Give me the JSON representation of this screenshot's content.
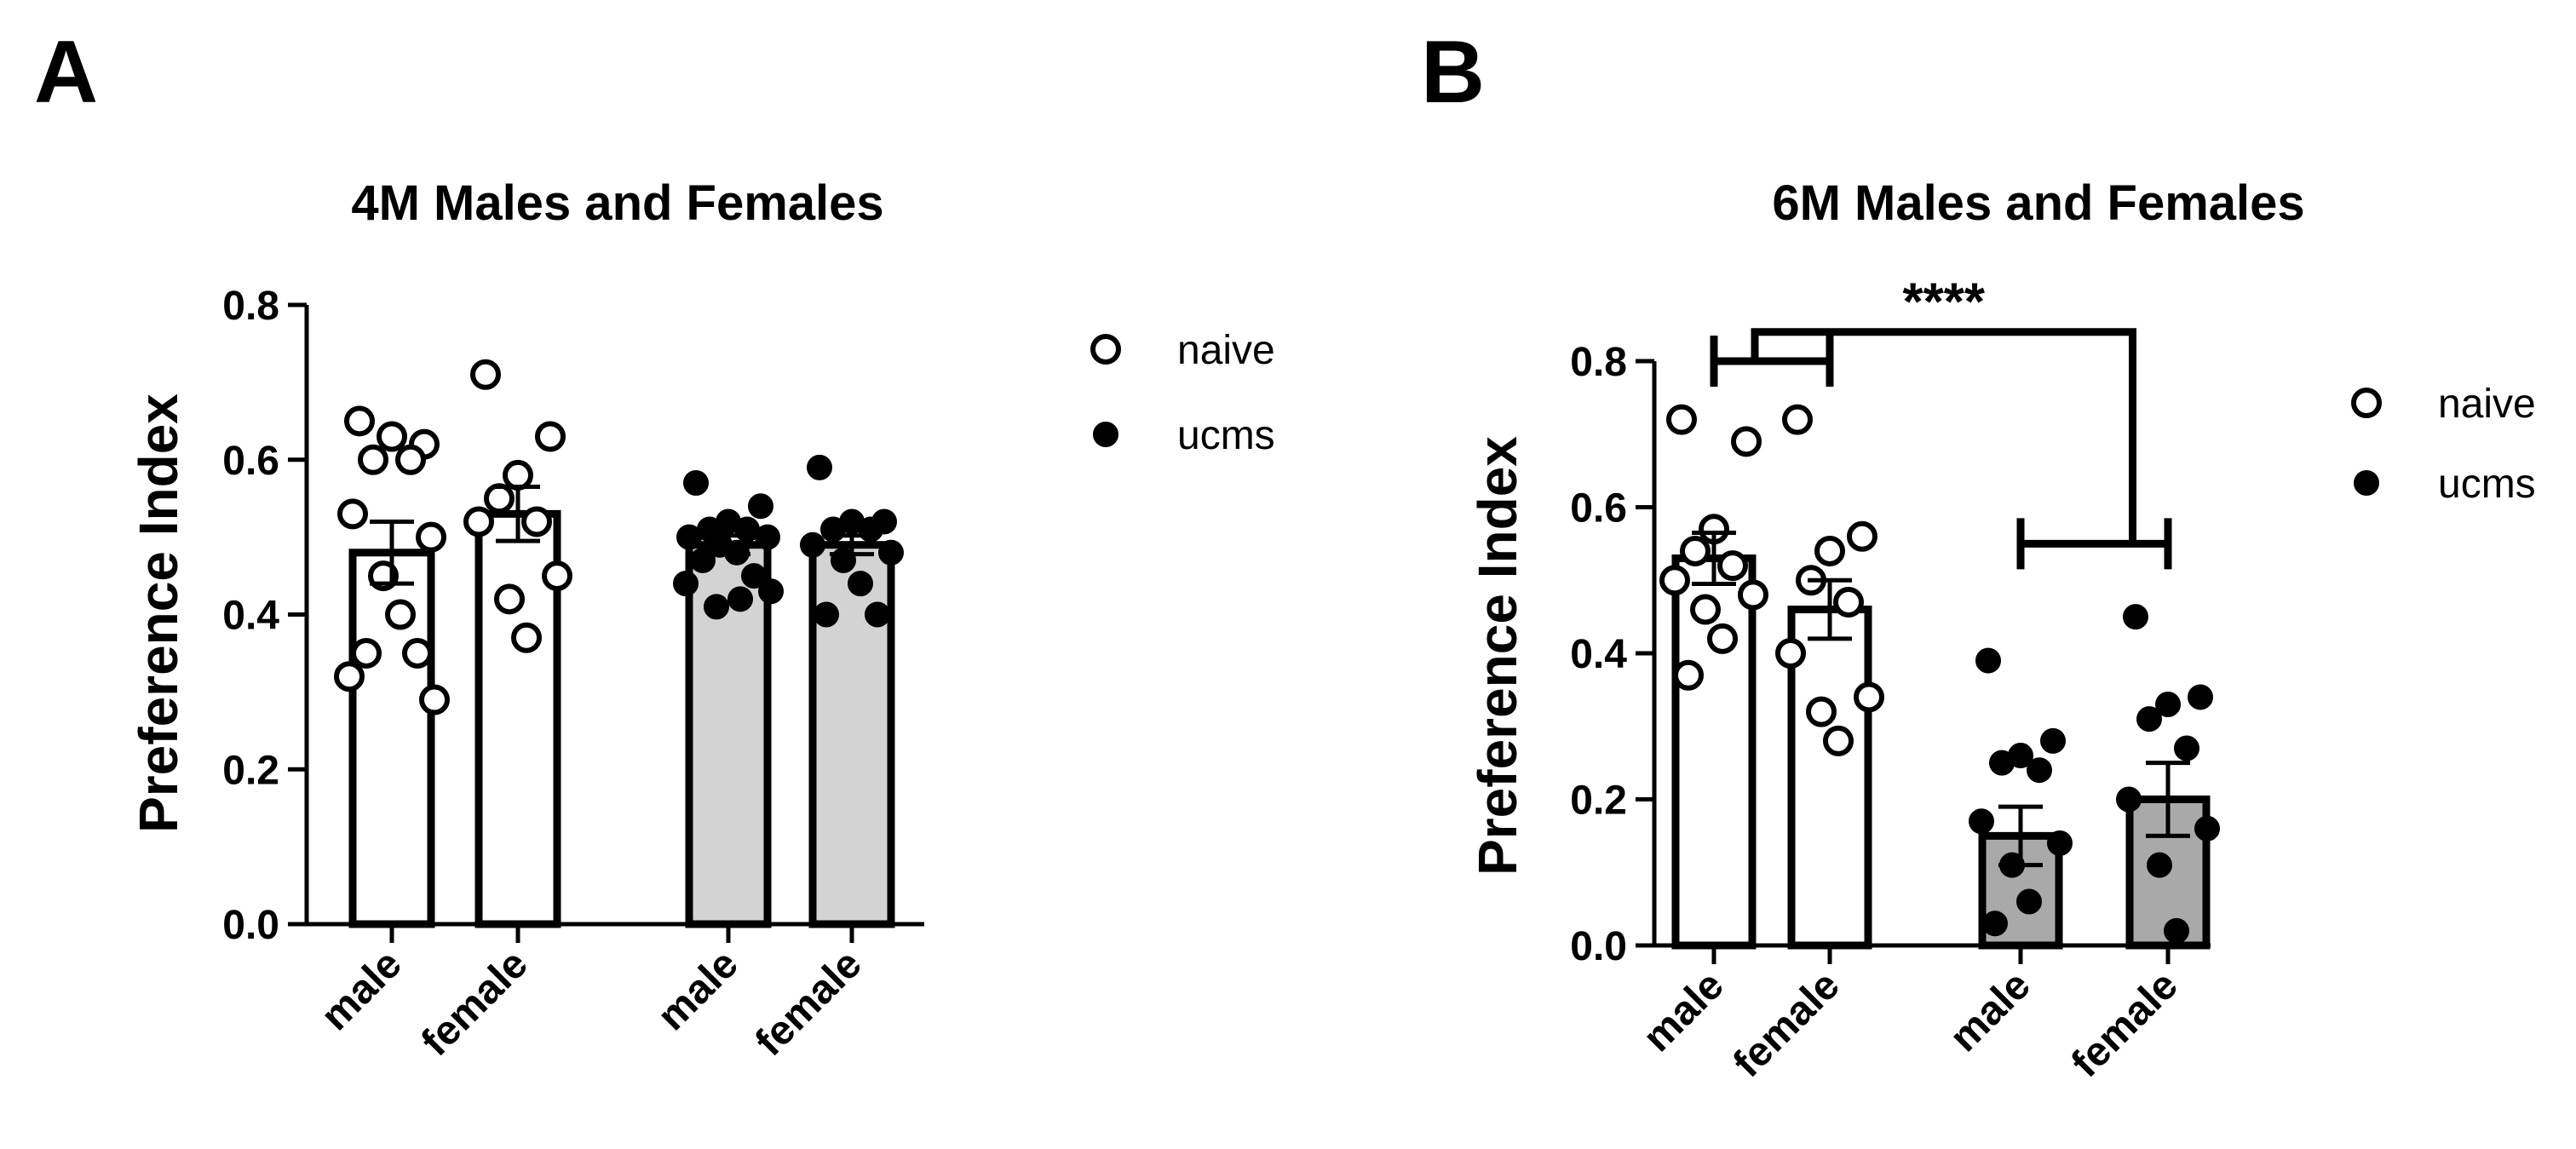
{
  "chart_data": [
    {
      "panel": "A",
      "type": "bar",
      "title": "4M Males and Females",
      "ylabel": "Preference Index",
      "xlabel": "",
      "ylim": [
        0,
        0.8
      ],
      "yticks": [
        "0.0",
        "0.2",
        "0.4",
        "0.6",
        "0.8"
      ],
      "categories": [
        "male",
        "female",
        "male",
        "female"
      ],
      "groups": [
        "naive",
        "naive",
        "ucms",
        "ucms"
      ],
      "bar_colors": [
        "#ffffff",
        "#ffffff",
        "#d3d3d3",
        "#d3d3d3"
      ],
      "means": [
        0.48,
        0.53,
        0.49,
        0.49
      ],
      "sem": [
        0.04,
        0.035,
        0.012,
        0.012
      ],
      "points": [
        [
          0.65,
          0.62,
          0.63,
          0.6,
          0.6,
          0.53,
          0.5,
          0.45,
          0.4,
          0.35,
          0.35,
          0.32,
          0.29
        ],
        [
          0.71,
          0.63,
          0.58,
          0.55,
          0.52,
          0.52,
          0.45,
          0.42,
          0.37
        ],
        [
          0.57,
          0.54,
          0.52,
          0.51,
          0.51,
          0.5,
          0.5,
          0.49,
          0.48,
          0.47,
          0.45,
          0.44,
          0.43,
          0.42,
          0.41
        ],
        [
          0.59,
          0.52,
          0.52,
          0.51,
          0.51,
          0.49,
          0.48,
          0.47,
          0.44,
          0.4,
          0.4
        ]
      ],
      "legend": {
        "placement": "right",
        "entries": [
          {
            "label": "naive",
            "marker": "open-circle"
          },
          {
            "label": "ucms",
            "marker": "filled-circle"
          }
        ]
      },
      "significance": []
    },
    {
      "panel": "B",
      "type": "bar",
      "title": "6M Males and Females",
      "ylabel": "Preference Index",
      "xlabel": "",
      "ylim": [
        0,
        0.8
      ],
      "yticks": [
        "0.0",
        "0.2",
        "0.4",
        "0.6",
        "0.8"
      ],
      "categories": [
        "male",
        "female",
        "male",
        "female"
      ],
      "groups": [
        "naive",
        "naive",
        "ucms",
        "ucms"
      ],
      "bar_colors": [
        "#ffffff",
        "#ffffff",
        "#a9a9a9",
        "#a9a9a9"
      ],
      "means": [
        0.53,
        0.46,
        0.15,
        0.2
      ],
      "sem": [
        0.035,
        0.04,
        0.04,
        0.05
      ],
      "points": [
        [
          0.72,
          0.69,
          0.57,
          0.54,
          0.52,
          0.5,
          0.48,
          0.46,
          0.42,
          0.37
        ],
        [
          0.72,
          0.56,
          0.54,
          0.5,
          0.47,
          0.4,
          0.34,
          0.32,
          0.28
        ],
        [
          0.39,
          0.28,
          0.26,
          0.25,
          0.24,
          0.17,
          0.14,
          0.11,
          0.06,
          0.03
        ],
        [
          0.45,
          0.34,
          0.33,
          0.31,
          0.27,
          0.2,
          0.16,
          0.11,
          0.02
        ]
      ],
      "legend": {
        "placement": "right",
        "entries": [
          {
            "label": "naive",
            "marker": "open-circle"
          },
          {
            "label": "ucms",
            "marker": "filled-circle"
          }
        ]
      },
      "significance": [
        {
          "label": "****",
          "left_group": [
            0,
            1
          ],
          "right_group": [
            2,
            3
          ]
        }
      ]
    }
  ]
}
